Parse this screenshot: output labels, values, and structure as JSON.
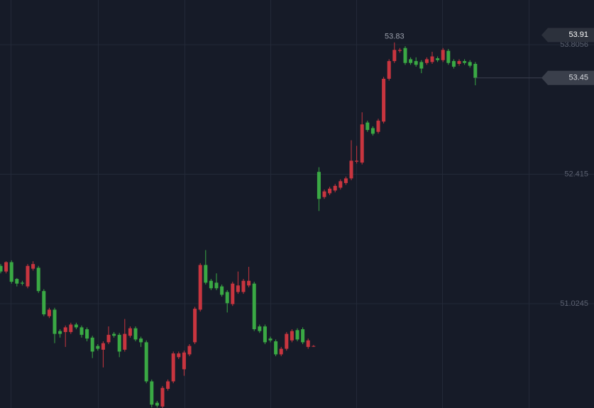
{
  "chart_data": {
    "type": "candlestick",
    "open": [
      51.43,
      51.37,
      51.47,
      51.29,
      51.25,
      51.21,
      51.4,
      51.41,
      51.16,
      50.89,
      50.96,
      50.73,
      50.72,
      50.72,
      50.8,
      50.77,
      50.75,
      50.66,
      50.57,
      50.53,
      50.61,
      50.7,
      50.69,
      50.53,
      50.68,
      50.76,
      50.65,
      50.61,
      50.19,
      49.96,
      49.92,
      50.11,
      50.19,
      50.45,
      50.32,
      50.48,
      50.61,
      50.96,
      51.44,
      51.27,
      51.25,
      51.21,
      51.15,
      51.02,
      51.15,
      51.15,
      51.22,
      51.24,
      50.78,
      50.78,
      50.65,
      50.62,
      50.48,
      50.54,
      50.63,
      50.74,
      50.75,
      50.56,
      50.57,
      52.44,
      52.17,
      52.21,
      52.24,
      52.27,
      52.32,
      52.37,
      52.55,
      52.54,
      52.97,
      52.91,
      52.87,
      52.98,
      53.44,
      53.63,
      53.74,
      53.77,
      53.65,
      53.63,
      53.62,
      53.61,
      53.62,
      53.66,
      53.64,
      53.74,
      53.63,
      53.6,
      53.63,
      53.62,
      53.6
    ],
    "high": [
      51.45,
      51.48,
      51.49,
      51.3,
      51.27,
      51.45,
      51.48,
      51.43,
      51.18,
      50.98,
      50.98,
      50.75,
      50.79,
      50.82,
      50.82,
      50.79,
      50.77,
      50.68,
      50.59,
      50.62,
      50.78,
      50.72,
      50.71,
      50.86,
      50.78,
      50.78,
      50.67,
      50.63,
      50.21,
      49.98,
      50.14,
      50.21,
      50.51,
      50.51,
      50.52,
      50.59,
      50.99,
      51.46,
      51.6,
      51.29,
      51.35,
      51.23,
      51.17,
      51.26,
      51.37,
      51.29,
      51.42,
      51.26,
      50.8,
      50.8,
      50.67,
      50.64,
      50.56,
      50.72,
      50.75,
      50.76,
      50.77,
      50.65,
      50.58,
      52.49,
      52.25,
      52.28,
      52.31,
      52.36,
      52.39,
      52.78,
      52.72,
      53.08,
      52.99,
      52.93,
      53.01,
      53.46,
      53.65,
      53.83,
      53.77,
      53.79,
      53.67,
      53.67,
      53.64,
      53.67,
      53.73,
      53.68,
      53.77,
      53.76,
      53.65,
      53.65,
      53.65,
      53.64,
      53.62
    ],
    "low": [
      51.35,
      51.35,
      51.24,
      51.21,
      51.22,
      51.19,
      51.38,
      51.14,
      50.89,
      50.87,
      50.6,
      50.66,
      50.56,
      50.7,
      50.75,
      50.66,
      50.62,
      50.44,
      50.52,
      50.34,
      50.59,
      50.66,
      50.45,
      50.51,
      50.66,
      50.62,
      50.56,
      50.17,
      49.91,
      49.91,
      49.9,
      50.09,
      50.17,
      50.43,
      50.25,
      50.46,
      50.59,
      50.94,
      51.23,
      51.17,
      51.17,
      51.1,
      50.93,
      51.0,
      51.13,
      51.13,
      51.2,
      50.73,
      50.71,
      50.59,
      50.61,
      50.46,
      50.46,
      50.52,
      50.61,
      50.62,
      50.59,
      50.54,
      50.56,
      52.02,
      52.15,
      52.19,
      52.22,
      52.25,
      52.3,
      52.35,
      52.53,
      52.52,
      52.87,
      52.83,
      52.85,
      52.96,
      53.42,
      53.61,
      53.72,
      53.59,
      53.59,
      53.57,
      53.5,
      53.59,
      53.6,
      53.62,
      53.62,
      53.59,
      53.55,
      53.58,
      53.59,
      53.56,
      53.37
    ],
    "close": [
      51.37,
      51.47,
      51.26,
      51.24,
      51.24,
      51.43,
      51.45,
      51.16,
      50.91,
      50.96,
      50.7,
      50.7,
      50.77,
      50.8,
      50.77,
      50.69,
      50.65,
      50.51,
      50.54,
      50.6,
      50.69,
      50.68,
      50.51,
      50.7,
      50.76,
      50.64,
      50.61,
      50.19,
      49.94,
      49.93,
      50.12,
      50.19,
      50.49,
      50.49,
      50.5,
      50.57,
      50.97,
      51.44,
      51.25,
      51.19,
      51.19,
      51.12,
      51.03,
      51.24,
      51.22,
      51.27,
      51.27,
      50.75,
      50.73,
      50.61,
      50.63,
      50.48,
      50.54,
      50.7,
      50.73,
      50.64,
      50.61,
      50.63,
      50.57,
      52.15,
      52.23,
      52.26,
      52.29,
      52.34,
      52.37,
      52.56,
      52.56,
      52.95,
      52.89,
      52.85,
      52.99,
      53.44,
      53.63,
      53.75,
      53.75,
      53.61,
      53.61,
      53.59,
      53.55,
      53.65,
      53.68,
      53.64,
      53.75,
      53.61,
      53.57,
      53.63,
      53.61,
      53.58,
      53.45
    ],
    "up_color": "#c8353f",
    "down_color": "#3aa944",
    "ylim": [
      49.904,
      54.286
    ],
    "yticks": [
      53.8056,
      52.415,
      51.0245
    ],
    "grid": true,
    "price_tags": [
      53.91,
      53.45
    ],
    "high_label": 53.83
  }
}
